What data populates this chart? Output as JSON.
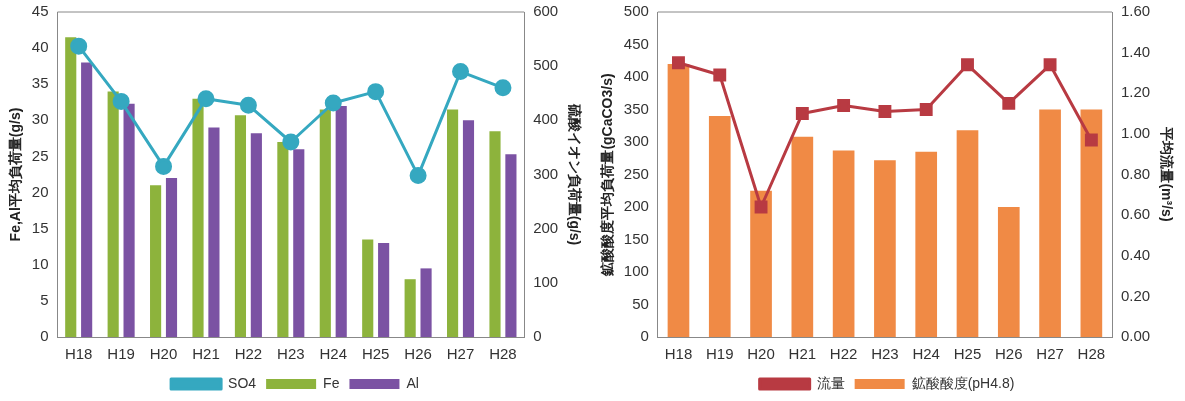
{
  "chart_data": [
    {
      "type": "bar",
      "ylabel": "Fe,Al平均負荷量(g/s)",
      "y2label": "硫酸イオン負荷量(g/s)",
      "categories": [
        "H18",
        "H19",
        "H20",
        "H21",
        "H22",
        "H23",
        "H24",
        "H25",
        "H26",
        "H27",
        "H28"
      ],
      "series": [
        {
          "name": "Fe",
          "color": "#8db33c",
          "values": [
            41.5,
            34,
            21,
            33,
            30.7,
            27,
            31.5,
            13.5,
            8,
            31.5,
            28.5
          ]
        },
        {
          "name": "Al",
          "color": "#7b52a3",
          "values": [
            38,
            32.3,
            22,
            29,
            28.2,
            26,
            32,
            13,
            9.5,
            30,
            25.3
          ]
        },
        {
          "name": "SO4",
          "type": "line",
          "axis": "y2",
          "marker": "circle",
          "color": "#35a8c0",
          "values": [
            537,
            435,
            315,
            440,
            428,
            360,
            432,
            453,
            298,
            490,
            460
          ]
        }
      ],
      "ylim": [
        0,
        45
      ],
      "yticks": [
        0,
        5,
        10,
        15,
        20,
        25,
        30,
        35,
        40,
        45
      ],
      "y2lim": [
        0,
        600
      ],
      "y2ticks": [
        0,
        100,
        200,
        300,
        400,
        500,
        600
      ],
      "grid": false,
      "legend": "bottom"
    },
    {
      "type": "bar",
      "ylabel": "鉱酸酸度平均負荷量(gCaCO3/s)",
      "y2label": "平均流量(m³/s)",
      "categories": [
        "H18",
        "H19",
        "H20",
        "H21",
        "H22",
        "H23",
        "H24",
        "H25",
        "H26",
        "H27",
        "H28"
      ],
      "series": [
        {
          "name": "鉱酸酸度(pH4.8)",
          "color": "#f08a45",
          "values": [
            420,
            340,
            225,
            308,
            287,
            272,
            285,
            318,
            200,
            350,
            350
          ]
        },
        {
          "name": "流量",
          "type": "line",
          "axis": "y2",
          "marker": "square",
          "color": "#b83a42",
          "values": [
            1.35,
            1.29,
            0.64,
            1.1,
            1.14,
            1.11,
            1.12,
            1.34,
            1.15,
            1.34,
            0.97
          ]
        }
      ],
      "ylim": [
        0,
        500
      ],
      "yticks": [
        0,
        50,
        100,
        150,
        200,
        250,
        300,
        350,
        400,
        450,
        500
      ],
      "y2lim": [
        0,
        1.6
      ],
      "y2ticks": [
        {
          "value": 0,
          "label": "0.00"
        },
        {
          "value": 0.2,
          "label": "0.20"
        },
        {
          "value": 0.4,
          "label": "0.40"
        },
        {
          "value": 0.6,
          "label": "0.60"
        },
        {
          "value": 0.8,
          "label": "0.80"
        },
        {
          "value": 1.0,
          "label": "1.00"
        },
        {
          "value": 1.2,
          "label": "1.20"
        },
        {
          "value": 1.4,
          "label": "1.40"
        },
        {
          "value": 1.6,
          "label": "1.60"
        }
      ],
      "grid": false,
      "legend": "bottom"
    }
  ]
}
